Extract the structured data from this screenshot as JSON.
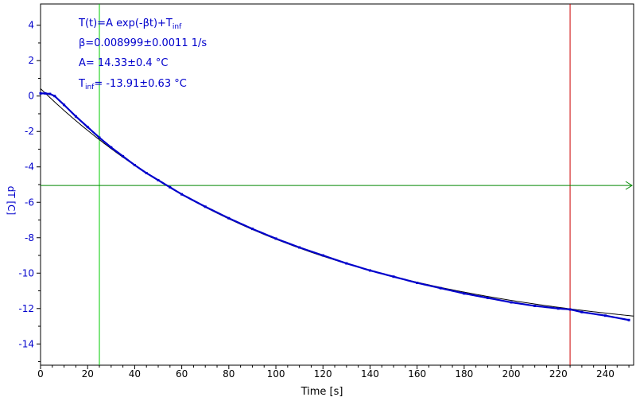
{
  "fit": {
    "model_prefix": "T(t)=A exp(-βt)+T",
    "model_sub": "inf",
    "beta": "β=0.008999±0.0011 1/s",
    "A": "A= 14.33±0.4 °C",
    "tinf_main": "T",
    "tinf_sub": "inf",
    "tinf_value": "= -13.91±0.63 °C"
  },
  "colors": {
    "data": "#0000cc",
    "fit": "#000000",
    "green_marker": "#00cc00",
    "red_marker": "#cc0000",
    "threshold": "#008800",
    "axis_text": "#0000cc"
  },
  "chart_data": {
    "type": "line",
    "xlabel": "Time [s]",
    "ylabel": "dT [C]",
    "xlim": [
      0,
      252
    ],
    "ylim": [
      -15.2,
      5.2
    ],
    "x_ticks": [
      0,
      20,
      40,
      60,
      80,
      100,
      120,
      140,
      160,
      180,
      200,
      220,
      240
    ],
    "y_ticks": [
      4,
      2,
      0,
      -2,
      -4,
      -6,
      -8,
      -10,
      -12,
      -14
    ],
    "grid": false,
    "series": [
      {
        "kind": "measured",
        "style": "blue step markers",
        "x": [
          0,
          2,
          4,
          6,
          10,
          15,
          20,
          25,
          30,
          35,
          40,
          45,
          50,
          55,
          60,
          70,
          80,
          90,
          100,
          110,
          120,
          130,
          140,
          150,
          160,
          170,
          180,
          190,
          200,
          210,
          220,
          225,
          230,
          240,
          250
        ],
        "values": [
          0.15,
          0.15,
          0.12,
          0.0,
          -0.5,
          -1.15,
          -1.75,
          -2.35,
          -2.9,
          -3.4,
          -3.9,
          -4.35,
          -4.75,
          -5.15,
          -5.55,
          -6.25,
          -6.9,
          -7.5,
          -8.05,
          -8.55,
          -9.0,
          -9.45,
          -9.85,
          -10.2,
          -10.55,
          -10.85,
          -11.15,
          -11.4,
          -11.65,
          -11.85,
          -12.0,
          -12.05,
          -12.2,
          -12.4,
          -12.65
        ]
      },
      {
        "kind": "fit",
        "model": "exponential",
        "A": 14.33,
        "beta": 0.008999,
        "T_inf": -13.91,
        "x_range": [
          0,
          252
        ]
      }
    ],
    "markers": {
      "vertical_green_x": 25,
      "vertical_red_x": 225,
      "horizontal_arrow_y": -5.05
    }
  }
}
